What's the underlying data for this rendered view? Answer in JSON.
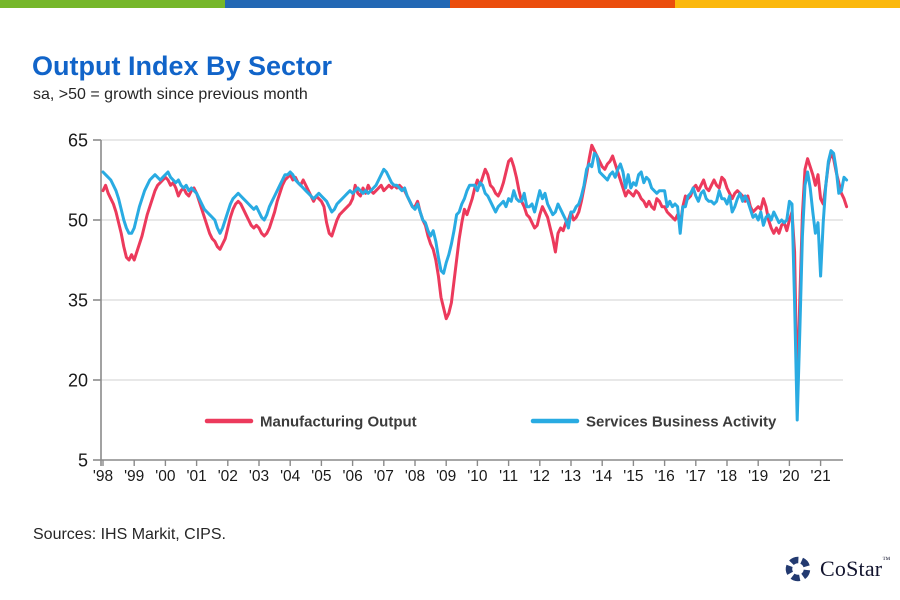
{
  "brand_bar": {
    "colors": [
      "#76B72A",
      "#2368B4",
      "#EB4D0C",
      "#FBB80D"
    ]
  },
  "header": {
    "title": "Output Index By Sector",
    "title_color": "#1164C9",
    "subtitle": "sa, >50 = growth since previous month"
  },
  "chart_data": {
    "type": "line",
    "title": "Output Index By Sector",
    "subtitle": "sa, >50 = growth since previous month",
    "x_start_year": 1998,
    "x_frequency": "monthly",
    "x_tick_labels": [
      "'98",
      "'99",
      "'00",
      "'01",
      "'02",
      "'03",
      "'04",
      "'05",
      "'06",
      "'07",
      "'08",
      "'09",
      "'10",
      "'11",
      "'12",
      "'13",
      "'14",
      "'15",
      "'16",
      "'17",
      "'18",
      "'19",
      "'20",
      "'21"
    ],
    "y_ticks": [
      5,
      20,
      35,
      50,
      65
    ],
    "ylim": [
      5,
      65
    ],
    "grid": "horizontal",
    "legend_position": "inside-bottom",
    "axis_color": "#8A8A8A",
    "grid_color": "#DADADA",
    "series": [
      {
        "name": "Manufacturing Output",
        "color": "#EC3A5C",
        "values": [
          55.5,
          56.5,
          55,
          54,
          53,
          51.5,
          49.5,
          47.5,
          45,
          43,
          42.5,
          43.5,
          42.5,
          44,
          45.5,
          47,
          49,
          51,
          52.5,
          54,
          55.5,
          56.5,
          57,
          57.5,
          58,
          57.5,
          56.5,
          57,
          56,
          54.5,
          55.5,
          56,
          55,
          54.5,
          55.5,
          56,
          55,
          53.5,
          52,
          50.5,
          49,
          47.5,
          46.5,
          46,
          45,
          44.5,
          45.5,
          46.5,
          48.5,
          50.5,
          52,
          53,
          53.5,
          53,
          52,
          51,
          50,
          49,
          48.5,
          49,
          48.5,
          47.5,
          47,
          47.5,
          48.5,
          50,
          51.5,
          53.5,
          55,
          56.5,
          57.5,
          58,
          58.5,
          57.5,
          58,
          57,
          56.5,
          57.5,
          56.5,
          55.5,
          54.5,
          53.5,
          54.5,
          54,
          53.5,
          52.5,
          49.5,
          47.5,
          47,
          48.5,
          50,
          51,
          51.5,
          52,
          52.5,
          53,
          54,
          56.5,
          55,
          54.5,
          56,
          55,
          56.5,
          55.5,
          55,
          55.5,
          56,
          56.5,
          55.5,
          56,
          56.5,
          56,
          56.5,
          56,
          56.5,
          56,
          55.5,
          54.5,
          53.5,
          52.5,
          52.5,
          53.5,
          51.5,
          50,
          49,
          47,
          45.5,
          44.5,
          42.5,
          39.5,
          35.5,
          33.5,
          31.5,
          32.5,
          34.5,
          38.5,
          42.5,
          46.5,
          49.5,
          52,
          51,
          52.5,
          54,
          56,
          57.5,
          56.5,
          58,
          59.5,
          58.5,
          56.5,
          56,
          55,
          54.5,
          55.5,
          57,
          59,
          61,
          61.5,
          60,
          58,
          55.5,
          53.5,
          52.5,
          51,
          50.5,
          49.5,
          48.5,
          49,
          51,
          52.5,
          51.5,
          50.5,
          48.5,
          46.5,
          44,
          47.5,
          48.5,
          48,
          49.5,
          50,
          51.5,
          50,
          50.5,
          51.5,
          53.5,
          56,
          58.5,
          61.5,
          64,
          63,
          62,
          61,
          60,
          59.5,
          60.5,
          61,
          62,
          60.5,
          59,
          57.5,
          56,
          54.5,
          55.5,
          55,
          54.5,
          55.5,
          55,
          54,
          53.5,
          52.5,
          53.5,
          52.5,
          52,
          54,
          53.5,
          52.5,
          52.5,
          51.5,
          51,
          50.5,
          50,
          51,
          49,
          52.5,
          54.5,
          54,
          54.5,
          56,
          56.5,
          55.5,
          56.5,
          57.5,
          56,
          55.5,
          56.5,
          57.5,
          56.5,
          56,
          58,
          57.5,
          56,
          55,
          54,
          55,
          55.5,
          55,
          54.5,
          53.5,
          54.5,
          52.5,
          51.5,
          52,
          52.5,
          52,
          54,
          52.5,
          50,
          48.5,
          47.5,
          48.5,
          47.5,
          49,
          49.5,
          48,
          50,
          51.5,
          44,
          16.5,
          35,
          51,
          59.5,
          61.5,
          60,
          58.5,
          56.5,
          58.5,
          54,
          53,
          56.5,
          60.5,
          62.5,
          61.5,
          59,
          57,
          55,
          54,
          52.5
        ]
      },
      {
        "name": "Services Business Activity",
        "color": "#29ABE2",
        "values": [
          59,
          58.5,
          58,
          57.5,
          56.5,
          55.5,
          54,
          52,
          50,
          48.5,
          47.5,
          47.5,
          48.5,
          50.5,
          52.5,
          54,
          55.5,
          56.5,
          57.5,
          58,
          58.5,
          58,
          57.5,
          58,
          58.5,
          59,
          58,
          57.5,
          57,
          57.5,
          56.5,
          56,
          56.5,
          55.5,
          56,
          55.5,
          55,
          54,
          53,
          52,
          51.5,
          51,
          50.5,
          50,
          48.5,
          47.5,
          48.5,
          50,
          51.5,
          53,
          54,
          54.5,
          55,
          54.5,
          54,
          53.5,
          53,
          52.5,
          52,
          52.5,
          51.5,
          50.5,
          50,
          51,
          52.5,
          53.5,
          54.5,
          55.5,
          56.5,
          57.5,
          58.5,
          58.5,
          59,
          58.5,
          57.5,
          57,
          56.5,
          56,
          55.5,
          55,
          54.5,
          54,
          54.5,
          55,
          54.5,
          54,
          53.5,
          52.5,
          51.5,
          52,
          53,
          53.5,
          54,
          54.5,
          55,
          55.5,
          55,
          55.5,
          56,
          55.5,
          55,
          55.5,
          55,
          55.5,
          56,
          56.5,
          57.5,
          58.5,
          59.5,
          59,
          58,
          57,
          56.5,
          56.5,
          56,
          55.5,
          56,
          54.5,
          53.5,
          52.5,
          52,
          53,
          51.5,
          50,
          49.5,
          48,
          47,
          48,
          46,
          43,
          40.5,
          40,
          42,
          43.5,
          45.5,
          48,
          51,
          51.5,
          53,
          54,
          55.5,
          56.5,
          56.5,
          56.5,
          55.5,
          57,
          56.5,
          55,
          54.5,
          53.5,
          52.5,
          51.5,
          52.5,
          53,
          53.5,
          52.5,
          54,
          53.5,
          55.5,
          54,
          53.5,
          53.5,
          55,
          52.5,
          52.5,
          53,
          51.5,
          53.5,
          55.5,
          54,
          55,
          53,
          52,
          51,
          51.5,
          53,
          52,
          51,
          50,
          48.5,
          51.5,
          51.5,
          52.5,
          53,
          54.5,
          56.5,
          59.5,
          60.5,
          60,
          62.5,
          62,
          59,
          58.5,
          58,
          57.5,
          58.5,
          59,
          58,
          59.5,
          60.5,
          59,
          56,
          58.5,
          56,
          57,
          56.5,
          58.5,
          59,
          57,
          58,
          57.5,
          56,
          55.5,
          55,
          55.5,
          55.5,
          55.5,
          52.5,
          53.5,
          52.5,
          53,
          52.5,
          47.5,
          52.5,
          52.5,
          54.5,
          55,
          56,
          54.5,
          53.5,
          55,
          55.5,
          54,
          53.5,
          53.5,
          53,
          53.5,
          55.5,
          54,
          54,
          53,
          54.5,
          51.5,
          52.5,
          54,
          55,
          53.5,
          54.5,
          53.5,
          52,
          50.5,
          51,
          50,
          51.5,
          49,
          50.5,
          51,
          50,
          51.5,
          50.5,
          49.5,
          50,
          49.5,
          50,
          53.5,
          53,
          34.5,
          12.5,
          29,
          47,
          56.5,
          59,
          56,
          51.5,
          47.5,
          49.5,
          39.5,
          49.5,
          56.5,
          61,
          63,
          62.5,
          59.5,
          55,
          55.5,
          58,
          57.5
        ]
      }
    ]
  },
  "footer": {
    "sources": "Sources: IHS Markit, CIPS.",
    "logo_text": "CoStar",
    "logo_tm": "™",
    "logo_color": "#233A70"
  }
}
